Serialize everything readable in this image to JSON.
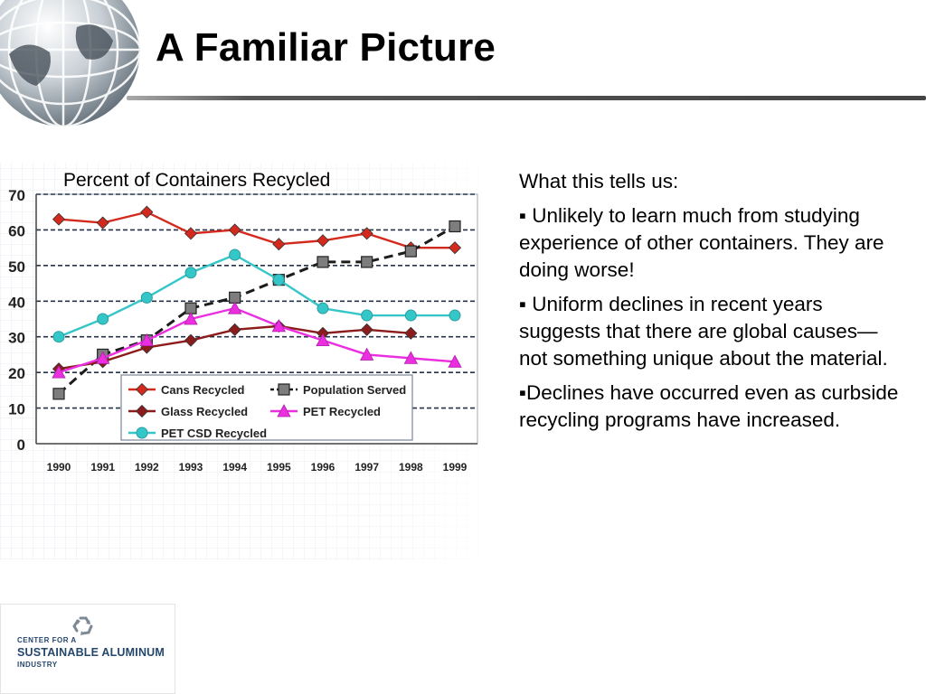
{
  "slide": {
    "title": "A Familiar Picture",
    "colors": {
      "title_rule": "#555555",
      "globe": "#6d7a86"
    }
  },
  "notes": {
    "heading": "What this tells us:",
    "bullets": [
      "▪ Unlikely to learn much from studying experience of other containers.  They are doing worse!",
      "▪ Uniform declines in recent years suggests that there are global causes—not something unique about the material.",
      "▪Declines have occurred even as curbside recycling programs have increased."
    ]
  },
  "logo": {
    "line1": "CENTER FOR A",
    "line2": "SUSTAINABLE ALUMINUM",
    "line3": "INDUSTRY",
    "icon": "recycle-icon",
    "color": "#24476c"
  },
  "chart_data": {
    "type": "line",
    "title": "Percent of Containers Recycled",
    "xlabel": "",
    "ylabel": "",
    "categories": [
      "1990",
      "1991",
      "1992",
      "1993",
      "1994",
      "1995",
      "1996",
      "1997",
      "1998",
      "1999"
    ],
    "ylim": [
      0,
      70
    ],
    "yticks": [
      0,
      10,
      20,
      30,
      40,
      50,
      60,
      70
    ],
    "grid": "dashed horizontal",
    "legend_position": "bottom-center inside plot",
    "series": [
      {
        "name": "Cans Recycled",
        "color": "#d42a1e",
        "marker": "diamond",
        "dash": false,
        "values": [
          63,
          62,
          65,
          59,
          60,
          56,
          57,
          59,
          55,
          55
        ]
      },
      {
        "name": "Population Served",
        "color": "#1c1c1c",
        "marker": "square",
        "dash": true,
        "values": [
          14,
          25,
          29,
          38,
          41,
          46,
          51,
          51,
          54,
          61
        ]
      },
      {
        "name": "Glass Recycled",
        "color": "#8c1c1c",
        "marker": "diamond",
        "dash": false,
        "values": [
          21,
          23,
          27,
          29,
          32,
          33,
          31,
          32,
          31,
          null
        ]
      },
      {
        "name": "PET Recycled",
        "color": "#ea2ee0",
        "marker": "triangle",
        "dash": false,
        "values": [
          20,
          24,
          29,
          35,
          38,
          33,
          29,
          25,
          24,
          23
        ]
      },
      {
        "name": "PET CSD Recycled",
        "color": "#35c6c8",
        "marker": "circle",
        "dash": false,
        "values": [
          30,
          35,
          41,
          48,
          53,
          46,
          38,
          36,
          36,
          36
        ]
      }
    ]
  }
}
